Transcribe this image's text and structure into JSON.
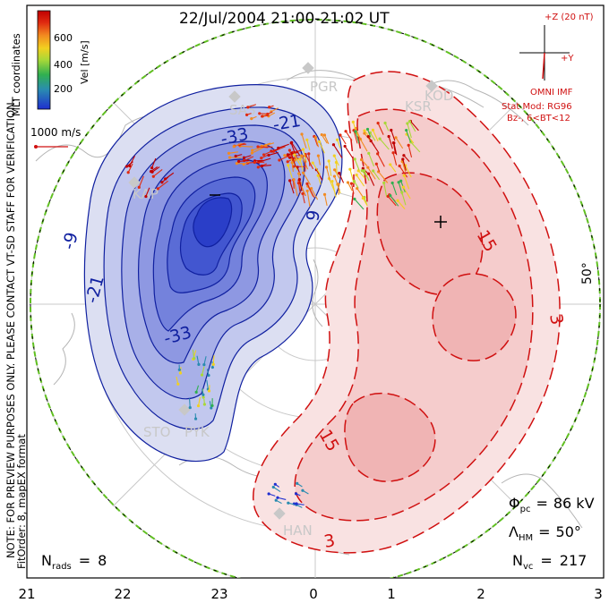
{
  "title": "22/Jul/2004 21:00-21:02 UT",
  "side_note_1": "NOTE: FOR PREVIEW PURPOSES ONLY. PLEASE CONTACT VT-SD STAFF FOR VERIFICATION.",
  "side_note_2": "FitOrder: 8, mapEX format",
  "coords_label": "MLT coordinates",
  "velocity_scale": {
    "axis_label": "Vel [m/s]",
    "ticks": [
      "600",
      "400",
      "200"
    ],
    "colors": [
      "#1f2fd0",
      "#2a8cb0",
      "#30b050",
      "#a8d838",
      "#f2d020",
      "#f28a20",
      "#e02a10",
      "#c00000"
    ]
  },
  "ref_vector_label": "1000 m/s",
  "imf": {
    "z_label": "+Z (20 nT)",
    "y_label": "+Y",
    "source_label": "OMNI IMF",
    "model_line1": "Stat Mod: RG96",
    "model_line2": "Bz-, 6<BT<12",
    "color": "#d01010"
  },
  "stations": [
    {
      "name": "PGR"
    },
    {
      "name": "KOD"
    },
    {
      "name": "KSR"
    },
    {
      "name": "KAP"
    },
    {
      "name": "SAS"
    },
    {
      "name": "STO"
    },
    {
      "name": "PYK"
    },
    {
      "name": "HAN"
    }
  ],
  "contours": {
    "negative_labels": [
      "-21",
      "-33",
      "-9",
      "-21",
      "-33"
    ],
    "positive_labels": [
      "9",
      "15",
      "3",
      "15",
      "3"
    ],
    "negative_color": "#1020a0",
    "positive_color": "#d01010"
  },
  "latitude_label": "50°",
  "stats": {
    "phi_pc": "86 kV",
    "lambda_hm": "50°",
    "n_vc": "217",
    "n_rads": "8"
  },
  "stat_labels": {
    "phi": "Φ",
    "phi_sub": "pc",
    "lambda": "Λ",
    "lambda_sub": "HM",
    "n": "N",
    "nvc_sub": "vc",
    "nrads_sub": "rads",
    "eq": "="
  },
  "mlt_ticks": [
    "21",
    "22",
    "23",
    "0",
    "1",
    "2",
    "3"
  ]
}
